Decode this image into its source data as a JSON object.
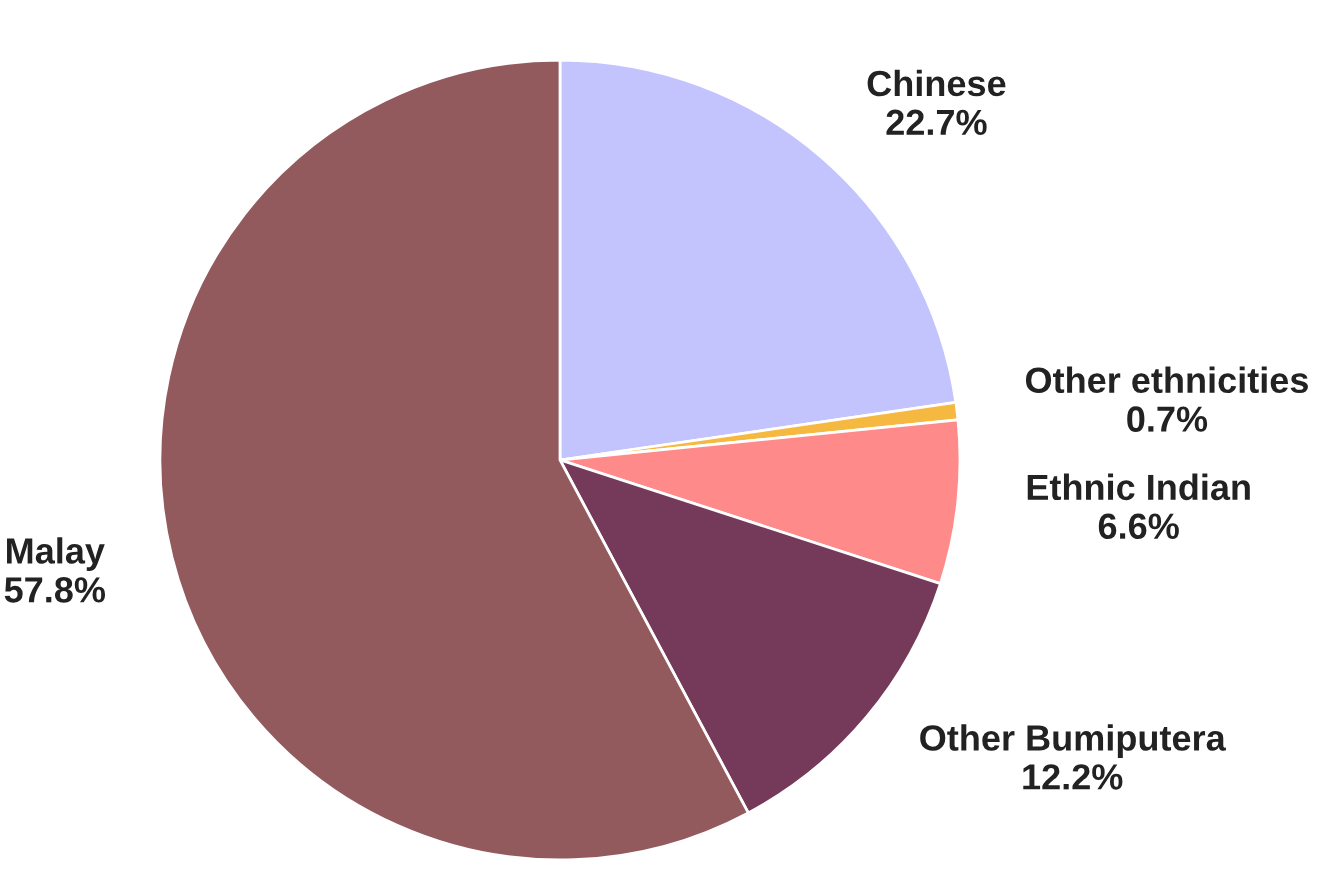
{
  "chart_data": {
    "type": "pie",
    "categories": [
      "Chinese",
      "Other ethnicities",
      "Ethnic Indian",
      "Other Bumiputera",
      "Malay"
    ],
    "values": [
      22.7,
      0.7,
      6.6,
      12.2,
      57.8
    ],
    "value_labels": [
      "22.7%",
      "0.7%",
      "6.6%",
      "12.2%",
      "57.8%"
    ],
    "colors": [
      "#c3c3fd",
      "#f5b942",
      "#ff8a8a",
      "#753a59",
      "#935a5e"
    ]
  }
}
